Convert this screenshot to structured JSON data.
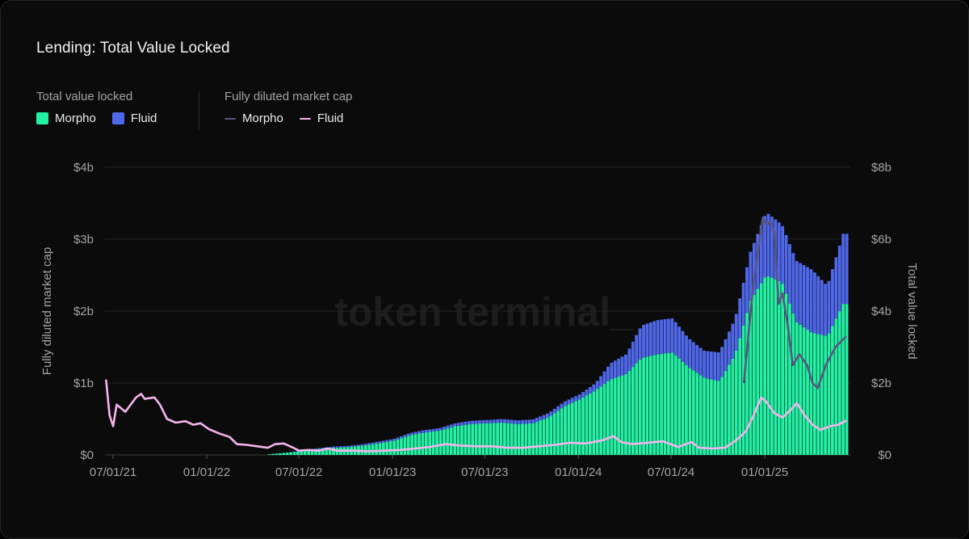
{
  "title": "Lending: Total Value Locked",
  "legend": {
    "tvl_group_title": "Total value locked",
    "mcap_group_title": "Fully diluted market cap",
    "tvl_items": [
      {
        "label": "Morpho",
        "color": "#22f0a3"
      },
      {
        "label": "Fluid",
        "color": "#4f68ea"
      }
    ],
    "mcap_items": [
      {
        "label": "Morpho",
        "color": "#5a5482"
      },
      {
        "label": "Fluid",
        "color": "#f5b4ee"
      }
    ]
  },
  "watermark": "token terminal_",
  "chart_data": {
    "type": "bar",
    "stacked": true,
    "title": "Lending: Total Value Locked",
    "left_axis_label": "Fully diluted market cap",
    "right_axis_label": "Total value locked",
    "left_ticks": [
      "$0",
      "$1b",
      "$2b",
      "$3b",
      "$4b"
    ],
    "right_ticks": [
      "$0",
      "$2b",
      "$4b",
      "$6b",
      "$8b"
    ],
    "ylim_left": [
      0,
      4000000000
    ],
    "ylim_right": [
      0,
      8000000000
    ],
    "x_ticks": [
      {
        "date": "2021-07-01",
        "label": "07/01/21"
      },
      {
        "date": "2022-01-01",
        "label": "01/01/22"
      },
      {
        "date": "2022-07-01",
        "label": "07/01/22"
      },
      {
        "date": "2023-01-01",
        "label": "01/01/23"
      },
      {
        "date": "2023-07-01",
        "label": "07/01/23"
      },
      {
        "date": "2024-01-01",
        "label": "01/01/24"
      },
      {
        "date": "2024-07-01",
        "label": "07/01/24"
      },
      {
        "date": "2025-01-01",
        "label": "01/01/25"
      }
    ],
    "grid": true,
    "bars": {
      "series": [
        {
          "name": "Morpho",
          "axis": "right",
          "color": "#22f0a3",
          "points": [
            [
              "2022-05-01",
              0.02
            ],
            [
              "2022-06-01",
              0.06
            ],
            [
              "2022-07-01",
              0.1
            ],
            [
              "2022-08-01",
              0.16
            ],
            [
              "2022-09-01",
              0.2
            ],
            [
              "2022-10-01",
              0.22
            ],
            [
              "2022-11-01",
              0.26
            ],
            [
              "2022-12-01",
              0.32
            ],
            [
              "2023-01-01",
              0.4
            ],
            [
              "2023-02-01",
              0.55
            ],
            [
              "2023-03-01",
              0.62
            ],
            [
              "2023-04-01",
              0.68
            ],
            [
              "2023-05-01",
              0.8
            ],
            [
              "2023-06-01",
              0.86
            ],
            [
              "2023-07-01",
              0.88
            ],
            [
              "2023-08-01",
              0.9
            ],
            [
              "2023-09-01",
              0.86
            ],
            [
              "2023-10-01",
              0.88
            ],
            [
              "2023-11-01",
              1.05
            ],
            [
              "2023-12-01",
              1.35
            ],
            [
              "2024-01-01",
              1.55
            ],
            [
              "2024-02-01",
              1.8
            ],
            [
              "2024-03-01",
              2.1
            ],
            [
              "2024-04-01",
              2.25
            ],
            [
              "2024-05-01",
              2.7
            ],
            [
              "2024-06-01",
              2.8
            ],
            [
              "2024-07-01",
              2.85
            ],
            [
              "2024-08-01",
              2.45
            ],
            [
              "2024-09-01",
              2.15
            ],
            [
              "2024-10-01",
              2.05
            ],
            [
              "2024-11-01",
              2.8
            ],
            [
              "2024-12-01",
              4.3
            ],
            [
              "2025-01-01",
              5.0
            ],
            [
              "2025-02-01",
              4.8
            ],
            [
              "2025-03-01",
              3.7
            ],
            [
              "2025-04-01",
              3.4
            ],
            [
              "2025-05-01",
              3.3
            ],
            [
              "2025-06-01",
              4.2
            ]
          ]
        },
        {
          "name": "Fluid",
          "axis": "right",
          "color": "#4f68ea",
          "points": [
            [
              "2022-05-01",
              0.0
            ],
            [
              "2022-06-01",
              0.0
            ],
            [
              "2022-07-01",
              0.02
            ],
            [
              "2022-08-01",
              0.02
            ],
            [
              "2022-09-01",
              0.03
            ],
            [
              "2022-10-01",
              0.03
            ],
            [
              "2022-11-01",
              0.04
            ],
            [
              "2022-12-01",
              0.05
            ],
            [
              "2023-01-01",
              0.05
            ],
            [
              "2023-02-01",
              0.06
            ],
            [
              "2023-03-01",
              0.07
            ],
            [
              "2023-04-01",
              0.07
            ],
            [
              "2023-05-01",
              0.08
            ],
            [
              "2023-06-01",
              0.09
            ],
            [
              "2023-07-01",
              0.09
            ],
            [
              "2023-08-01",
              0.1
            ],
            [
              "2023-09-01",
              0.1
            ],
            [
              "2023-10-01",
              0.11
            ],
            [
              "2023-11-01",
              0.12
            ],
            [
              "2023-12-01",
              0.13
            ],
            [
              "2024-01-01",
              0.14
            ],
            [
              "2024-02-01",
              0.2
            ],
            [
              "2024-03-01",
              0.45
            ],
            [
              "2024-04-01",
              0.55
            ],
            [
              "2024-05-01",
              0.9
            ],
            [
              "2024-06-01",
              0.95
            ],
            [
              "2024-07-01",
              0.95
            ],
            [
              "2024-08-01",
              0.8
            ],
            [
              "2024-09-01",
              0.75
            ],
            [
              "2024-10-01",
              0.8
            ],
            [
              "2024-11-01",
              1.0
            ],
            [
              "2024-12-01",
              1.35
            ],
            [
              "2025-01-01",
              1.75
            ],
            [
              "2025-02-01",
              1.6
            ],
            [
              "2025-03-01",
              1.7
            ],
            [
              "2025-04-01",
              1.75
            ],
            [
              "2025-05-01",
              1.4
            ],
            [
              "2025-06-01",
              1.95
            ]
          ]
        }
      ],
      "unit": "billion USD"
    },
    "lines": {
      "series": [
        {
          "name": "Morpho",
          "axis": "left",
          "color": "#5a5482",
          "points": [
            [
              "2024-11-21",
              1.0
            ],
            [
              "2024-12-01",
              1.75
            ],
            [
              "2024-12-10",
              2.4
            ],
            [
              "2024-12-20",
              2.9
            ],
            [
              "2024-12-28",
              3.3
            ],
            [
              "2025-01-05",
              3.2
            ],
            [
              "2025-01-12",
              3.25
            ],
            [
              "2025-01-20",
              3.1
            ],
            [
              "2025-01-28",
              2.1
            ],
            [
              "2025-02-05",
              2.25
            ],
            [
              "2025-02-15",
              1.8
            ],
            [
              "2025-02-25",
              1.25
            ],
            [
              "2025-03-10",
              1.4
            ],
            [
              "2025-03-25",
              1.25
            ],
            [
              "2025-04-05",
              1.0
            ],
            [
              "2025-04-15",
              0.93
            ],
            [
              "2025-05-01",
              1.25
            ],
            [
              "2025-05-20",
              1.5
            ],
            [
              "2025-06-10",
              1.65
            ]
          ]
        },
        {
          "name": "Fluid",
          "axis": "left",
          "color": "#f5b4ee",
          "points": [
            [
              "2021-06-17",
              1.05
            ],
            [
              "2021-06-24",
              0.55
            ],
            [
              "2021-07-01",
              0.4
            ],
            [
              "2021-07-08",
              0.7
            ],
            [
              "2021-07-25",
              0.6
            ],
            [
              "2021-08-15",
              0.8
            ],
            [
              "2021-08-25",
              0.85
            ],
            [
              "2021-09-01",
              0.78
            ],
            [
              "2021-09-20",
              0.8
            ],
            [
              "2021-10-01",
              0.7
            ],
            [
              "2021-10-15",
              0.5
            ],
            [
              "2021-11-01",
              0.45
            ],
            [
              "2021-11-20",
              0.47
            ],
            [
              "2021-12-05",
              0.42
            ],
            [
              "2021-12-20",
              0.44
            ],
            [
              "2022-01-05",
              0.36
            ],
            [
              "2022-01-25",
              0.3
            ],
            [
              "2022-02-15",
              0.25
            ],
            [
              "2022-03-01",
              0.15
            ],
            [
              "2022-03-20",
              0.14
            ],
            [
              "2022-04-10",
              0.12
            ],
            [
              "2022-05-01",
              0.1
            ],
            [
              "2022-05-15",
              0.15
            ],
            [
              "2022-06-01",
              0.16
            ],
            [
              "2022-06-20",
              0.1
            ],
            [
              "2022-07-01",
              0.06
            ],
            [
              "2022-07-20",
              0.07
            ],
            [
              "2022-08-10",
              0.06
            ],
            [
              "2022-08-25",
              0.09
            ],
            [
              "2022-09-15",
              0.06
            ],
            [
              "2022-10-15",
              0.06
            ],
            [
              "2022-11-15",
              0.05
            ],
            [
              "2022-12-15",
              0.06
            ],
            [
              "2023-01-15",
              0.07
            ],
            [
              "2023-02-15",
              0.09
            ],
            [
              "2023-03-15",
              0.11
            ],
            [
              "2023-04-15",
              0.15
            ],
            [
              "2023-05-15",
              0.13
            ],
            [
              "2023-06-15",
              0.12
            ],
            [
              "2023-07-15",
              0.12
            ],
            [
              "2023-08-15",
              0.1
            ],
            [
              "2023-09-15",
              0.1
            ],
            [
              "2023-10-15",
              0.12
            ],
            [
              "2023-11-15",
              0.14
            ],
            [
              "2023-12-15",
              0.17
            ],
            [
              "2024-01-15",
              0.16
            ],
            [
              "2024-02-15",
              0.2
            ],
            [
              "2024-03-10",
              0.26
            ],
            [
              "2024-03-25",
              0.18
            ],
            [
              "2024-04-15",
              0.15
            ],
            [
              "2024-05-15",
              0.17
            ],
            [
              "2024-06-15",
              0.19
            ],
            [
              "2024-07-15",
              0.11
            ],
            [
              "2024-08-10",
              0.18
            ],
            [
              "2024-08-25",
              0.1
            ],
            [
              "2024-09-20",
              0.09
            ],
            [
              "2024-10-15",
              0.1
            ],
            [
              "2024-11-05",
              0.2
            ],
            [
              "2024-11-25",
              0.33
            ],
            [
              "2024-12-10",
              0.55
            ],
            [
              "2024-12-25",
              0.8
            ],
            [
              "2025-01-05",
              0.73
            ],
            [
              "2025-01-20",
              0.58
            ],
            [
              "2025-02-05",
              0.52
            ],
            [
              "2025-02-20",
              0.62
            ],
            [
              "2025-03-05",
              0.72
            ],
            [
              "2025-03-20",
              0.55
            ],
            [
              "2025-04-05",
              0.42
            ],
            [
              "2025-04-20",
              0.35
            ],
            [
              "2025-05-10",
              0.4
            ],
            [
              "2025-05-25",
              0.42
            ],
            [
              "2025-06-10",
              0.48
            ]
          ]
        }
      ],
      "unit": "billion USD"
    }
  }
}
